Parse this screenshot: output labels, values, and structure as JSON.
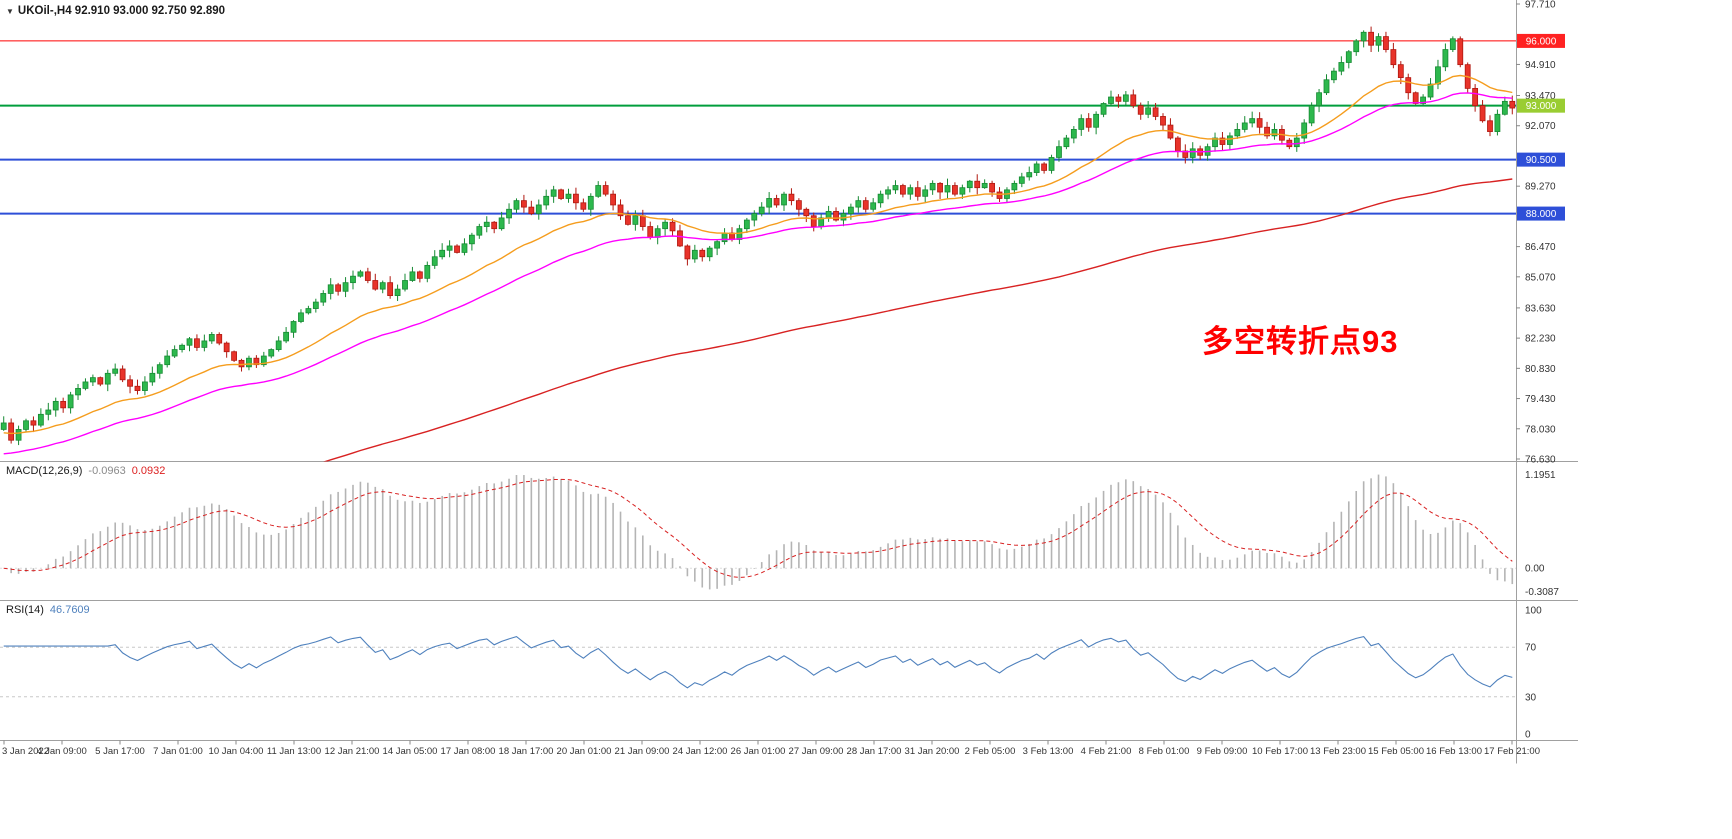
{
  "window": {
    "title_symbol": "UKOil-,H4",
    "title_ohlc": "92.910 93.000 92.750 92.890"
  },
  "annotation": {
    "text": "多空转折点93",
    "color": "#ff0000"
  },
  "chart_data": {
    "type": "candlestick",
    "symbol": "UKOil-",
    "timeframe": "H4",
    "title": "UKOil-,H4 92.910 93.000 92.750 92.890",
    "current_candle": {
      "open": 92.91,
      "high": 93.0,
      "low": 92.75,
      "close": 92.89
    },
    "y_axis": {
      "min": 76.63,
      "max": 97.71,
      "ticks": [
        "97.710",
        "94.910",
        "93.470",
        "92.070",
        "89.270",
        "86.470",
        "85.070",
        "83.630",
        "82.230",
        "80.830",
        "79.430",
        "78.030",
        "76.630"
      ]
    },
    "h_lines": [
      {
        "value": 96.0,
        "label": "96.000",
        "color": "#ff0000",
        "badge": "#ff2222",
        "width": 1
      },
      {
        "value": 93.0,
        "label": "93.000",
        "color": "#009e3c",
        "badge": "#9acd32",
        "width": 2
      },
      {
        "value": 90.5,
        "label": "90.500",
        "color": "#2e4fd8",
        "badge": "#2e4fd8",
        "width": 2
      },
      {
        "value": 88.0,
        "label": "88.000",
        "color": "#2e4fd8",
        "badge": "#2e4fd8",
        "width": 2
      }
    ],
    "time_labels": [
      "3 Jan 2022",
      "4 Jan 09:00",
      "5 Jan 17:00",
      "7 Jan 01:00",
      "10 Jan 04:00",
      "11 Jan 13:00",
      "12 Jan 21:00",
      "14 Jan 05:00",
      "17 Jan 08:00",
      "18 Jan 17:00",
      "20 Jan 01:00",
      "21 Jan 09:00",
      "24 Jan 12:00",
      "26 Jan 01:00",
      "27 Jan 09:00",
      "28 Jan 17:00",
      "31 Jan 20:00",
      "2 Feb 05:00",
      "3 Feb 13:00",
      "4 Feb 21:00",
      "8 Feb 01:00",
      "9 Feb 09:00",
      "10 Feb 17:00",
      "13 Feb 23:00",
      "15 Feb 05:00",
      "16 Feb 13:00",
      "17 Feb 21:00"
    ],
    "closes": [
      78.3,
      77.5,
      78.0,
      78.4,
      78.2,
      78.7,
      78.9,
      79.3,
      79.0,
      79.6,
      79.9,
      80.2,
      80.4,
      80.1,
      80.6,
      80.8,
      80.3,
      80.0,
      79.8,
      80.2,
      80.6,
      81.0,
      81.4,
      81.7,
      81.9,
      82.2,
      81.8,
      82.1,
      82.4,
      82.0,
      81.6,
      81.2,
      80.9,
      81.3,
      81.0,
      81.4,
      81.7,
      82.1,
      82.5,
      83.0,
      83.4,
      83.6,
      83.9,
      84.3,
      84.7,
      84.4,
      84.8,
      85.1,
      85.3,
      84.9,
      84.5,
      84.8,
      84.2,
      84.5,
      84.9,
      85.3,
      85.0,
      85.6,
      86.0,
      86.3,
      86.5,
      86.2,
      86.6,
      87.0,
      87.4,
      87.6,
      87.3,
      87.8,
      88.2,
      88.6,
      88.3,
      88.0,
      88.4,
      88.8,
      89.1,
      88.7,
      88.9,
      88.5,
      88.2,
      88.8,
      89.3,
      88.9,
      88.4,
      87.9,
      87.5,
      87.9,
      87.4,
      86.9,
      87.3,
      87.6,
      87.2,
      86.5,
      85.9,
      86.3,
      86.0,
      86.4,
      86.7,
      87.1,
      86.8,
      87.3,
      87.7,
      88.0,
      88.3,
      88.7,
      88.4,
      88.9,
      88.6,
      88.2,
      87.9,
      87.4,
      87.8,
      88.1,
      87.7,
      88.0,
      88.3,
      88.6,
      88.2,
      88.5,
      88.9,
      89.1,
      89.3,
      88.9,
      89.2,
      88.8,
      89.1,
      89.4,
      89.0,
      89.3,
      88.9,
      89.2,
      89.5,
      89.2,
      89.4,
      89.0,
      88.7,
      89.1,
      89.4,
      89.7,
      89.9,
      90.3,
      90.0,
      90.6,
      91.1,
      91.5,
      91.9,
      92.4,
      92.0,
      92.6,
      93.1,
      93.4,
      93.2,
      93.5,
      93.0,
      92.6,
      92.9,
      92.5,
      92.1,
      91.5,
      90.9,
      90.6,
      91.0,
      90.7,
      91.1,
      91.5,
      91.2,
      91.6,
      91.9,
      92.2,
      92.4,
      92.0,
      91.6,
      91.9,
      91.4,
      91.1,
      91.5,
      92.2,
      93.0,
      93.6,
      94.2,
      94.6,
      95.0,
      95.5,
      96.0,
      96.4,
      95.8,
      96.2,
      95.6,
      94.9,
      94.3,
      93.6,
      93.1,
      93.4,
      94.0,
      94.8,
      95.6,
      96.1,
      94.9,
      93.8,
      93.0,
      92.3,
      91.8,
      92.6,
      93.2,
      92.89
    ],
    "candle_colors": {
      "up_fill": "#2db84d",
      "up_stroke": "#168a33",
      "down_fill": "#e8332a",
      "down_stroke": "#b01810"
    },
    "moving_averages": [
      {
        "name": "fast",
        "period": 21,
        "seed": 77.8,
        "color": "#f59d1e"
      },
      {
        "name": "mid",
        "period": 40,
        "seed": 76.8,
        "color": "#ff00ff"
      },
      {
        "name": "slow",
        "period": 150,
        "seed": 72.8,
        "color": "#d82222"
      }
    ],
    "indicators": {
      "macd": {
        "label": "MACD(12,26,9)",
        "value": "-0.0963",
        "signal_value": "0.0932",
        "axis_labels": [
          "1.1951",
          "0.00",
          "-0.3087"
        ],
        "hist_color": "#b4b4b4",
        "signal_color": "#d82222"
      },
      "rsi": {
        "label": "RSI(14)",
        "value": "46.7609",
        "axis_labels": [
          "100",
          "70",
          "30",
          "0"
        ],
        "levels": [
          70,
          30
        ],
        "color": "#4f81bd"
      }
    }
  }
}
